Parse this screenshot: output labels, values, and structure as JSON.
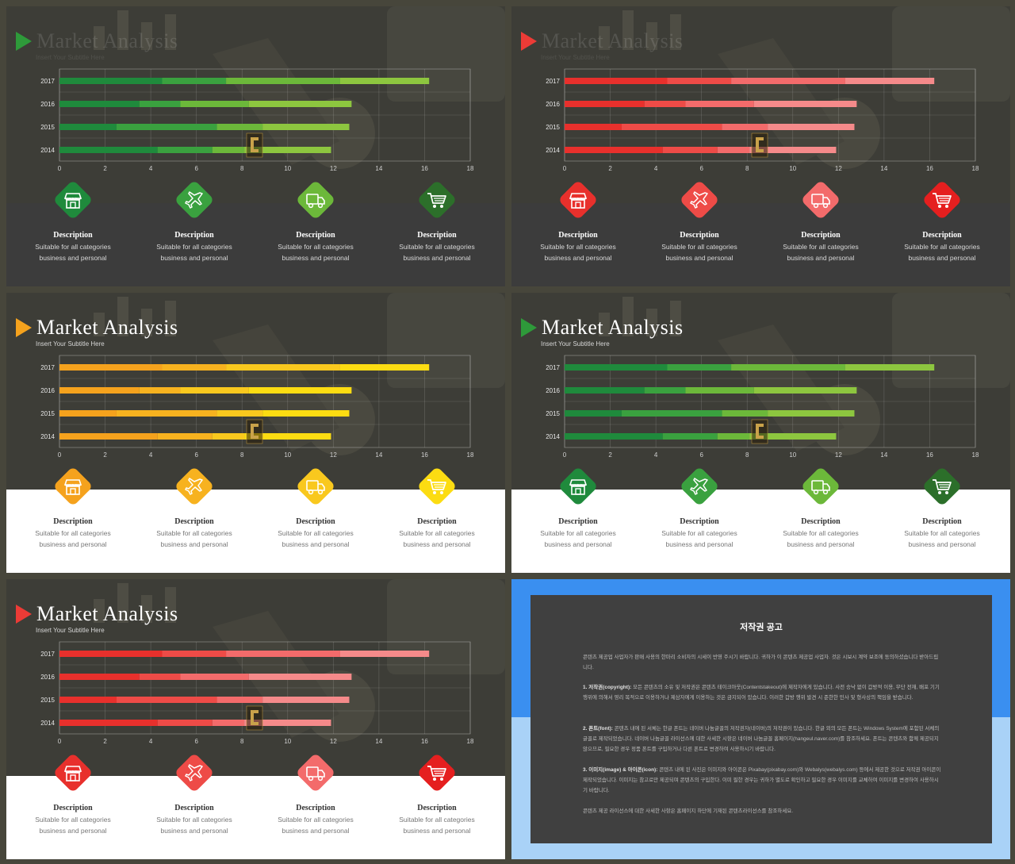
{
  "slides": [
    {
      "theme": "green",
      "title": "Market Analysis",
      "subtitle": "Insert Your Subtitle Here",
      "faded_title": true,
      "bottom": "dark"
    },
    {
      "theme": "red",
      "title": "Market Analysis",
      "subtitle": "Insert Your Subtitle Here",
      "faded_title": true,
      "bottom": "dark"
    },
    {
      "theme": "orange",
      "title": "Market Analysis",
      "subtitle": "Insert Your Subtitle Here",
      "faded_title": false,
      "bottom": "white"
    },
    {
      "theme": "green",
      "title": "Market Analysis",
      "subtitle": "Insert Your Subtitle Here",
      "faded_title": false,
      "bottom": "white"
    },
    {
      "theme": "red",
      "title": "Market Analysis",
      "subtitle": "Insert Your Subtitle Here",
      "faded_title": false,
      "bottom": "white"
    }
  ],
  "themes": {
    "green": {
      "accent": "#2e9a3a",
      "segments": [
        "#1f8a3c",
        "#3aa13f",
        "#6cb83a",
        "#8dc63f"
      ],
      "diamonds": [
        "#1f8a3c",
        "#3aa13f",
        "#6cb83a",
        "#2c6f2a"
      ]
    },
    "red": {
      "accent": "#ec3b36",
      "segments": [
        "#e8302c",
        "#ee4b47",
        "#f36b6b",
        "#f58a8a"
      ],
      "diamonds": [
        "#e8302c",
        "#ee4b47",
        "#f36b6b",
        "#e51f1f"
      ]
    },
    "orange": {
      "accent": "#f5a21d",
      "segments": [
        "#f5a21d",
        "#f7b21f",
        "#f9c81e",
        "#fcdc12"
      ],
      "diamonds": [
        "#f5a21d",
        "#f7b21f",
        "#f9c81e",
        "#fcdc12"
      ]
    }
  },
  "chart_data": {
    "type": "bar",
    "orientation": "horizontal",
    "stacked": true,
    "categories": [
      "2017",
      "2016",
      "2015",
      "2014"
    ],
    "series": [
      {
        "values": [
          4.5,
          3.5,
          2.5,
          4.3
        ]
      },
      {
        "values": [
          2.8,
          1.8,
          4.4,
          2.4
        ]
      },
      {
        "values": [
          5.0,
          3.0,
          2.0,
          1.4
        ]
      },
      {
        "values": [
          3.9,
          4.5,
          3.8,
          3.8
        ]
      }
    ],
    "xlim": [
      0,
      18
    ],
    "xticks": [
      "0",
      "2",
      "4",
      "6",
      "8",
      "10",
      "12",
      "14",
      "16",
      "18"
    ],
    "grid": true
  },
  "cards": [
    {
      "icon": "store-icon",
      "title": "Description",
      "line1": "Suitable for all categories",
      "line2": "business and personal"
    },
    {
      "icon": "airplane-icon",
      "title": "Description",
      "line1": "Suitable for all categories",
      "line2": "business and personal"
    },
    {
      "icon": "truck-icon",
      "title": "Description",
      "line1": "Suitable for all categories",
      "line2": "business and personal"
    },
    {
      "icon": "cart-icon",
      "title": "Description",
      "line1": "Suitable for all categories",
      "line2": "business and personal"
    }
  ],
  "notice": {
    "title": "저작권 공고",
    "p1": "콘텐츠 제공업 사업자가 판매 사용의 한마리 소비자의 시세이 반영 주시기 바랍니다. 귀하가 이 콘텐츠 제공업 사업자. 것은 시보시 계약 보조에 동의하셨습니다 받아드립니다.",
    "p2_head": "1. 저작권(copyright):",
    "p2": " 모든 콘텐츠의 소유 및 저작권은 콘텐츠 테이크아웃(Contentstakeout)에 제작자에게 있습니다. 사전 승낙 없이 갑방적 이용, 무단 전재, 배포 기기 행위에 의해서 영리 목적으로 이용하거나 제삼자에게 이용하는 것은 금지되어 있습니다. 이러한 갑방 행위 발견 시 준한한 민사 및 형사상의 책임을 받습니다.",
    "p3_head": "2. 폰트(font):",
    "p3": " 콘텐츠 내에 된 서체는 한글 폰트는 네이버 나눔글꼴의 저작권자(네이버)의 저작권이 있습니다. 한글 외의 모든 폰트는 Windows System에 포함된 서체의 글꼴로 제작되었습니다. 네이버 나눔글꼴 라이선스에 대한 사세한 시항은 네이버 나눔글꼴 홈페이지(hangeul.naver.com)를 참조하세요. 폰트는 콘텐츠와 함께 제공되지 않으므로, 필요한 경우 정품 폰트를 구입하거나 다른 폰트로 변경하여 사용하시기 바랍니다.",
    "p4_head": "3. 이미지(image) & 아이콘(icon):",
    "p4": " 콘텐츠 내에 된 사진은 이미지와 아이콘은 Pixabay(pixabay.com)와 Webalys(webalys.com) 등에서 제공한 것으로 저작권 아이콘이 제작되었습니다. 이미지는 참고로만 제공되며 콘텐츠의 구입한다. 이미 필한 경우는 귀하가 별도로 확인하고 필요한 경우 이미지를 교체하여 이미지를 변경하여 사용하시기 바랍니다.",
    "p5": "콘텐츠 제공 라이선스에 대한 사세한 사항은 홈페이지 하단에 기재된 콘텐츠라이선스를 참조하세요."
  }
}
